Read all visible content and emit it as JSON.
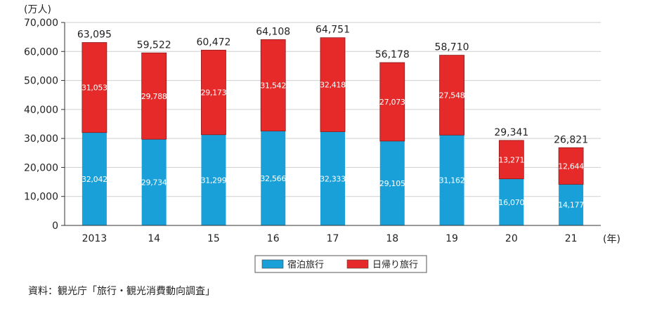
{
  "chart_data": {
    "type": "bar",
    "stacked": true,
    "y_unit_label": "(万人)",
    "x_unit_label": "(年)",
    "categories": [
      "2013",
      "14",
      "15",
      "16",
      "17",
      "18",
      "19",
      "20",
      "21"
    ],
    "series": [
      {
        "name": "宿泊旅行",
        "color": "#1aa0d8",
        "values": [
          32042,
          29734,
          31299,
          32566,
          32333,
          29105,
          31162,
          16070,
          14177
        ],
        "labels": [
          "32,042",
          "29,734",
          "31,299",
          "32,566",
          "32,333",
          "29,105",
          "31,162",
          "16,070",
          "14,177"
        ]
      },
      {
        "name": "日帰り旅行",
        "color": "#e62a2a",
        "values": [
          31053,
          29788,
          29173,
          31542,
          32418,
          27073,
          27548,
          13271,
          12644
        ],
        "labels": [
          "31,053",
          "29,788",
          "29,173",
          "31,542",
          "32,418",
          "27,073",
          "27,548",
          "13,271",
          "12,644"
        ]
      }
    ],
    "totals": [
      63095,
      59522,
      60472,
      64108,
      64751,
      56178,
      58710,
      29341,
      26821
    ],
    "total_labels": [
      "63,095",
      "59,522",
      "60,472",
      "64,108",
      "64,751",
      "56,178",
      "58,710",
      "29,341",
      "26,821"
    ],
    "ylim": [
      0,
      70000
    ],
    "y_ticks": [
      0,
      10000,
      20000,
      30000,
      40000,
      50000,
      60000,
      70000
    ],
    "y_tick_labels": [
      "0",
      "10,000",
      "20,000",
      "30,000",
      "40,000",
      "50,000",
      "60,000",
      "70,000"
    ],
    "gridlines": true,
    "legend_position": "bottom-center"
  },
  "source": "資料：観光庁「旅行・観光消費動向調査」"
}
